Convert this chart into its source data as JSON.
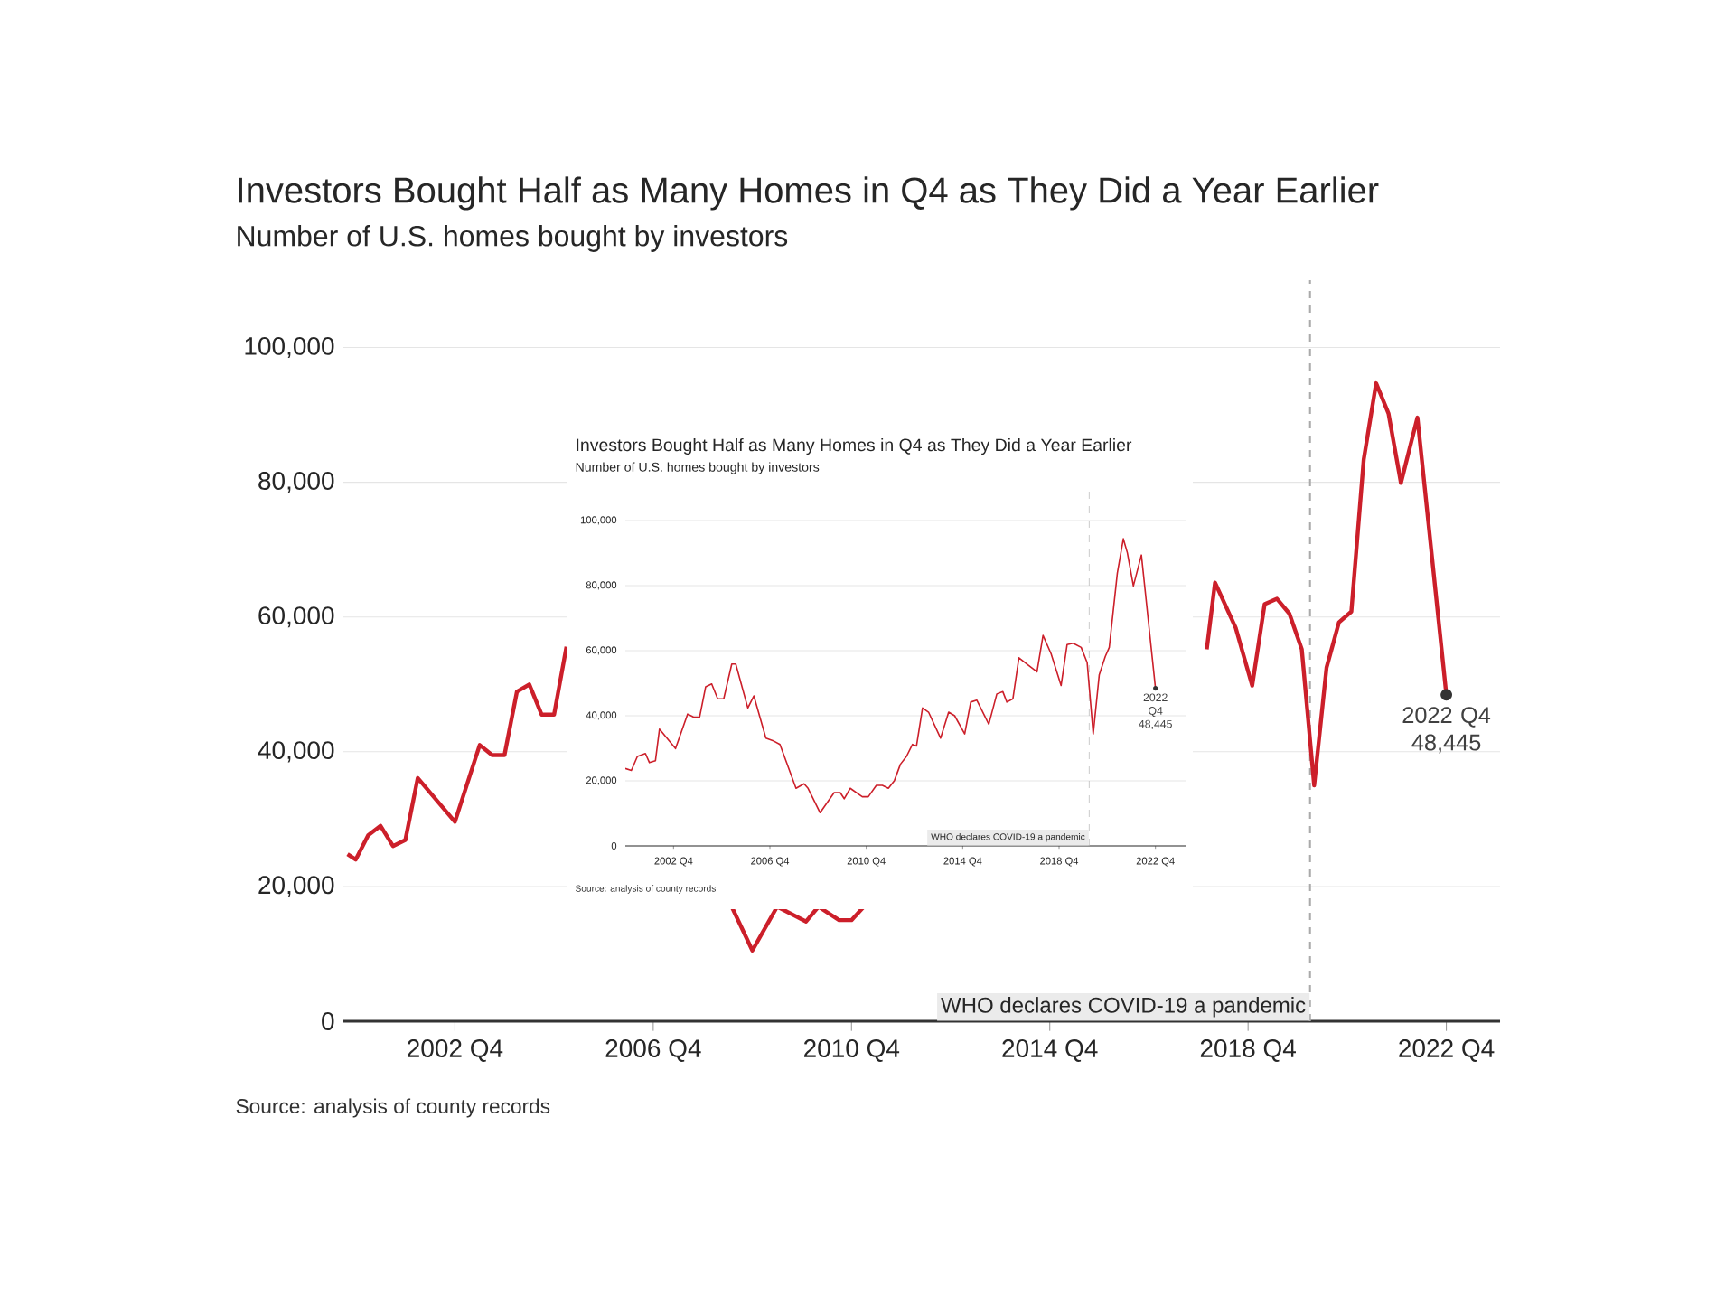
{
  "chart_data": [
    {
      "type": "line",
      "title": "Investors Bought Half as Many Homes in Q4 as They Did a Year Earlier",
      "subtitle": "Number of U.S. homes bought by investors",
      "series": [
        {
          "color": "#cc1f2a",
          "x": [
            "2000-08",
            "2000-10",
            "2001-01",
            "2001-04",
            "2001-07",
            "2001-10",
            "2002-01",
            "2002-10",
            "2003-04",
            "2003-07",
            "2003-10",
            "2004-01",
            "2004-04",
            "2004-07",
            "2004-10",
            "2005-01",
            "2006-07",
            "2008-05",
            "2008-10",
            "2009-04",
            "2009-11",
            "2010-02",
            "2010-07",
            "2010-10",
            "2011-01",
            "2014-01",
            "2017-12",
            "2018-02",
            "2018-07",
            "2018-11",
            "2019-02",
            "2019-05",
            "2019-08",
            "2019-11",
            "2020-02",
            "2020-05",
            "2020-08",
            "2020-11",
            "2021-02",
            "2021-05",
            "2021-08",
            "2021-11",
            "2022-03",
            "2022-10"
          ],
          "values": [
            24800,
            24000,
            27600,
            29000,
            26000,
            26900,
            36100,
            29600,
            41000,
            39500,
            39500,
            48900,
            50000,
            45500,
            45500,
            55600,
            null,
            17000,
            10500,
            17000,
            14800,
            17000,
            15000,
            15000,
            17000,
            null,
            55200,
            65100,
            58400,
            49800,
            61900,
            62700,
            60500,
            55200,
            35000,
            52500,
            59200,
            60800,
            83400,
            94700,
            90200,
            79900,
            89600,
            48445
          ]
        }
      ],
      "xlim": [
        "2000-07",
        "2023-11"
      ],
      "ylim": [
        0,
        110000
      ],
      "xticks": [
        {
          "value": "2002-10",
          "label": "2002 Q4"
        },
        {
          "value": "2006-10",
          "label": "2006 Q4"
        },
        {
          "value": "2010-10",
          "label": "2010 Q4"
        },
        {
          "value": "2014-10",
          "label": "2014 Q4"
        },
        {
          "value": "2018-10",
          "label": "2018 Q4"
        },
        {
          "value": "2022-10",
          "label": "2022 Q4"
        }
      ],
      "yticks": [
        0,
        {
          "value": 20000,
          "label": "20,000"
        },
        {
          "value": 40000,
          "label": "40,000"
        },
        {
          "value": 60000,
          "label": "60,000"
        },
        {
          "value": 80000,
          "label": "80,000"
        },
        {
          "value": 100000,
          "label": "100,000"
        }
      ],
      "grid": "y",
      "ref_lines": [
        {
          "axis": "x",
          "value": "2020-01",
          "label": "WHO declares COVID-19 a pandemic",
          "color": "#aaaaaa",
          "line_style": "dashed"
        }
      ],
      "annotations": [
        {
          "text": "2022 Q4 48,445",
          "x": "2022-10",
          "y": 48445
        },
        "Source: analysis of county records"
      ]
    },
    {
      "type": "line",
      "title": "Investors Bought Half as Many Homes in Q4 as They Did a Year Earlier",
      "subtitle": "Number of U.S. homes bought by investors",
      "series": [
        {
          "color": "#cc1f2a",
          "x": [
            "2000-10",
            "2001-01",
            "2001-04",
            "2001-08",
            "2001-10",
            "2002-01",
            "2002-03",
            "2002-11",
            "2003-05",
            "2003-08",
            "2003-11",
            "2004-02",
            "2004-05",
            "2004-08",
            "2004-11",
            "2005-03",
            "2005-05",
            "2005-11",
            "2006-02",
            "2006-08",
            "2006-12",
            "2007-03",
            "2007-11",
            "2008-03",
            "2008-05",
            "2008-11",
            "2009-06",
            "2009-09",
            "2009-11",
            "2010-02",
            "2010-08",
            "2010-11",
            "2011-03",
            "2011-06",
            "2011-09",
            "2011-12",
            "2012-03",
            "2012-06",
            "2012-09",
            "2012-11",
            "2013-02",
            "2013-05",
            "2013-11",
            "2014-03",
            "2014-06",
            "2014-11",
            "2015-02",
            "2015-05",
            "2015-11",
            "2016-03",
            "2016-06",
            "2016-08",
            "2016-11",
            "2017-02",
            "2017-06",
            "2017-11",
            "2018-02",
            "2018-06",
            "2018-11",
            "2019-02",
            "2019-05",
            "2019-09",
            "2019-12",
            "2020-03",
            "2020-06",
            "2020-09",
            "2020-11",
            "2021-03",
            "2021-06",
            "2021-08",
            "2021-11",
            "2022-03",
            "2022-10"
          ],
          "values": [
            23800,
            23200,
            27500,
            28400,
            25600,
            26200,
            35900,
            29900,
            40500,
            39600,
            39600,
            48900,
            49800,
            45200,
            45200,
            55900,
            55900,
            42400,
            46100,
            33100,
            32200,
            31200,
            17700,
            19100,
            17700,
            10200,
            16400,
            16400,
            14500,
            17700,
            15100,
            15100,
            18600,
            18600,
            17700,
            20100,
            25100,
            27500,
            31200,
            30700,
            42400,
            41100,
            33100,
            41100,
            40000,
            34400,
            44200,
            44800,
            37400,
            46700,
            47400,
            44200,
            45200,
            57800,
            55900,
            53500,
            64700,
            59100,
            49300,
            61900,
            62300,
            61000,
            56300,
            34400,
            52600,
            58200,
            61000,
            83800,
            94400,
            90100,
            79900,
            89400,
            48445
          ]
        }
      ],
      "xlim": [
        "2000-10",
        "2024-01"
      ],
      "ylim": [
        0,
        110000
      ],
      "xticks": [
        {
          "value": "2002-10",
          "label": "2002 Q4"
        },
        {
          "value": "2006-10",
          "label": "2006 Q4"
        },
        {
          "value": "2010-10",
          "label": "2010 Q4"
        },
        {
          "value": "2014-10",
          "label": "2014 Q4"
        },
        {
          "value": "2018-10",
          "label": "2018 Q4"
        },
        {
          "value": "2022-10",
          "label": "2022 Q4"
        }
      ],
      "yticks": [
        0,
        {
          "value": 20000,
          "label": "20,000"
        },
        {
          "value": 40000,
          "label": "40,000"
        },
        {
          "value": 60000,
          "label": "60,000"
        },
        {
          "value": 80000,
          "label": "80,000"
        },
        {
          "value": 100000,
          "label": "100,000"
        }
      ],
      "grid": "y",
      "ref_lines": [
        {
          "axis": "x",
          "value": "2020-01",
          "label": "WHO declares COVID-19 a pandemic",
          "color": "#bbbbbb",
          "line_style": "dashed"
        }
      ],
      "annotations": [
        {
          "text": "2022 Q4 48,445",
          "x": "2022-10",
          "y": 48445
        },
        "Source: analysis of county records"
      ]
    }
  ]
}
